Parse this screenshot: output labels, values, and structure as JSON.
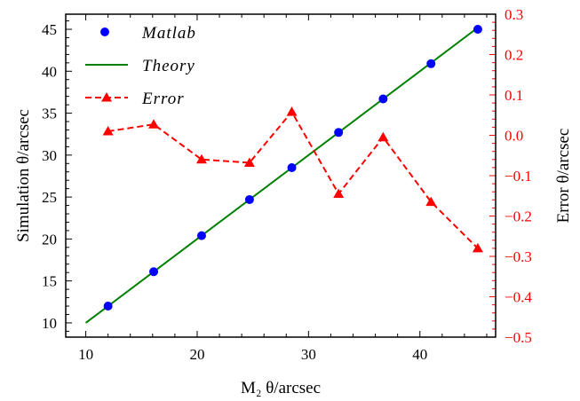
{
  "chart_data": {
    "type": "line",
    "title": "",
    "xlabel": "M₂ θ/arcsec",
    "ylabel": "Simulation θ/arcsec",
    "y2label": "Error θ/arcsec",
    "xlim": [
      8.2,
      46.8
    ],
    "ylim": [
      8.3,
      46.8
    ],
    "y2lim": [
      -0.5,
      0.3
    ],
    "xticks": [
      10,
      20,
      30,
      40
    ],
    "yticks": [
      10,
      15,
      20,
      25,
      30,
      35,
      40,
      45
    ],
    "y2ticks": [
      0.3,
      0.2,
      0.1,
      0.0,
      -0.1,
      -0.2,
      -0.3,
      -0.4,
      -0.5
    ],
    "y2tick_labels": [
      "0.3",
      "0.2",
      "0.1",
      "0.0",
      "−0.1",
      "−0.2",
      "−0.3",
      "−0.4",
      "−0.5"
    ],
    "legend_position": "top-left",
    "colors": {
      "matlab": "#0000ff",
      "theory": "#008000",
      "error": "#ff0000",
      "right_axis": "#ff0000"
    },
    "series": [
      {
        "name": "Matlab",
        "style": "blue-dots",
        "axis": "left",
        "x": [
          12.0,
          16.1,
          20.4,
          24.7,
          28.5,
          32.7,
          36.7,
          41.0,
          45.2
        ],
        "y": [
          12.0,
          16.1,
          20.4,
          24.7,
          28.5,
          32.7,
          36.7,
          40.9,
          45.0
        ]
      },
      {
        "name": "Theory",
        "style": "green-line",
        "axis": "left",
        "x": [
          10,
          45.2
        ],
        "y": [
          10,
          45.2
        ]
      },
      {
        "name": "Error",
        "style": "red-dashed-triangles",
        "axis": "right",
        "x": [
          12.0,
          16.1,
          20.4,
          24.7,
          28.5,
          32.7,
          36.7,
          41.0,
          45.2
        ],
        "y": [
          0.01,
          0.027,
          -0.06,
          -0.068,
          0.058,
          -0.145,
          -0.005,
          -0.165,
          -0.28
        ]
      }
    ]
  }
}
